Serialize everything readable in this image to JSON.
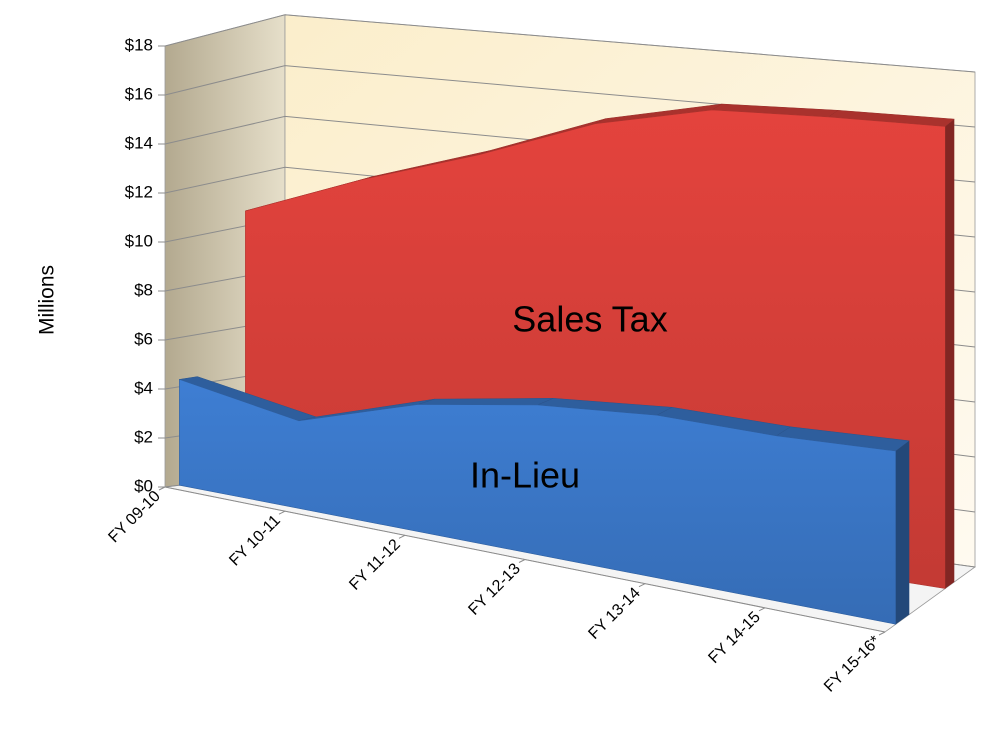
{
  "chart_data": {
    "type": "area",
    "y_label": "Millions",
    "categories": [
      "FY 09-10",
      "FY 10-11",
      "FY 11-12",
      "FY 12-13",
      "FY 13-14",
      "FY 14-15",
      "FY 15-16*"
    ],
    "series": [
      {
        "name": "In-Lieu",
        "color": "#3b78c9",
        "values": [
          4.3,
          3.5,
          5.0,
          5.8,
          6.2,
          6.2,
          6.4
        ]
      },
      {
        "name": "Sales Tax",
        "color": "#d9403a",
        "values": [
          10.6,
          12.4,
          13.9,
          15.6,
          16.6,
          16.8,
          16.9
        ]
      }
    ],
    "ylim": [
      0,
      18
    ],
    "yticks": [
      {
        "value": 0,
        "label": "$0"
      },
      {
        "value": 2,
        "label": "$2"
      },
      {
        "value": 4,
        "label": "$4"
      },
      {
        "value": 6,
        "label": "$6"
      },
      {
        "value": 8,
        "label": "$8"
      },
      {
        "value": 10,
        "label": "$10"
      },
      {
        "value": 12,
        "label": "$12"
      },
      {
        "value": 14,
        "label": "$14"
      },
      {
        "value": 16,
        "label": "$16"
      },
      {
        "value": 18,
        "label": "$18"
      }
    ],
    "grid": true
  }
}
